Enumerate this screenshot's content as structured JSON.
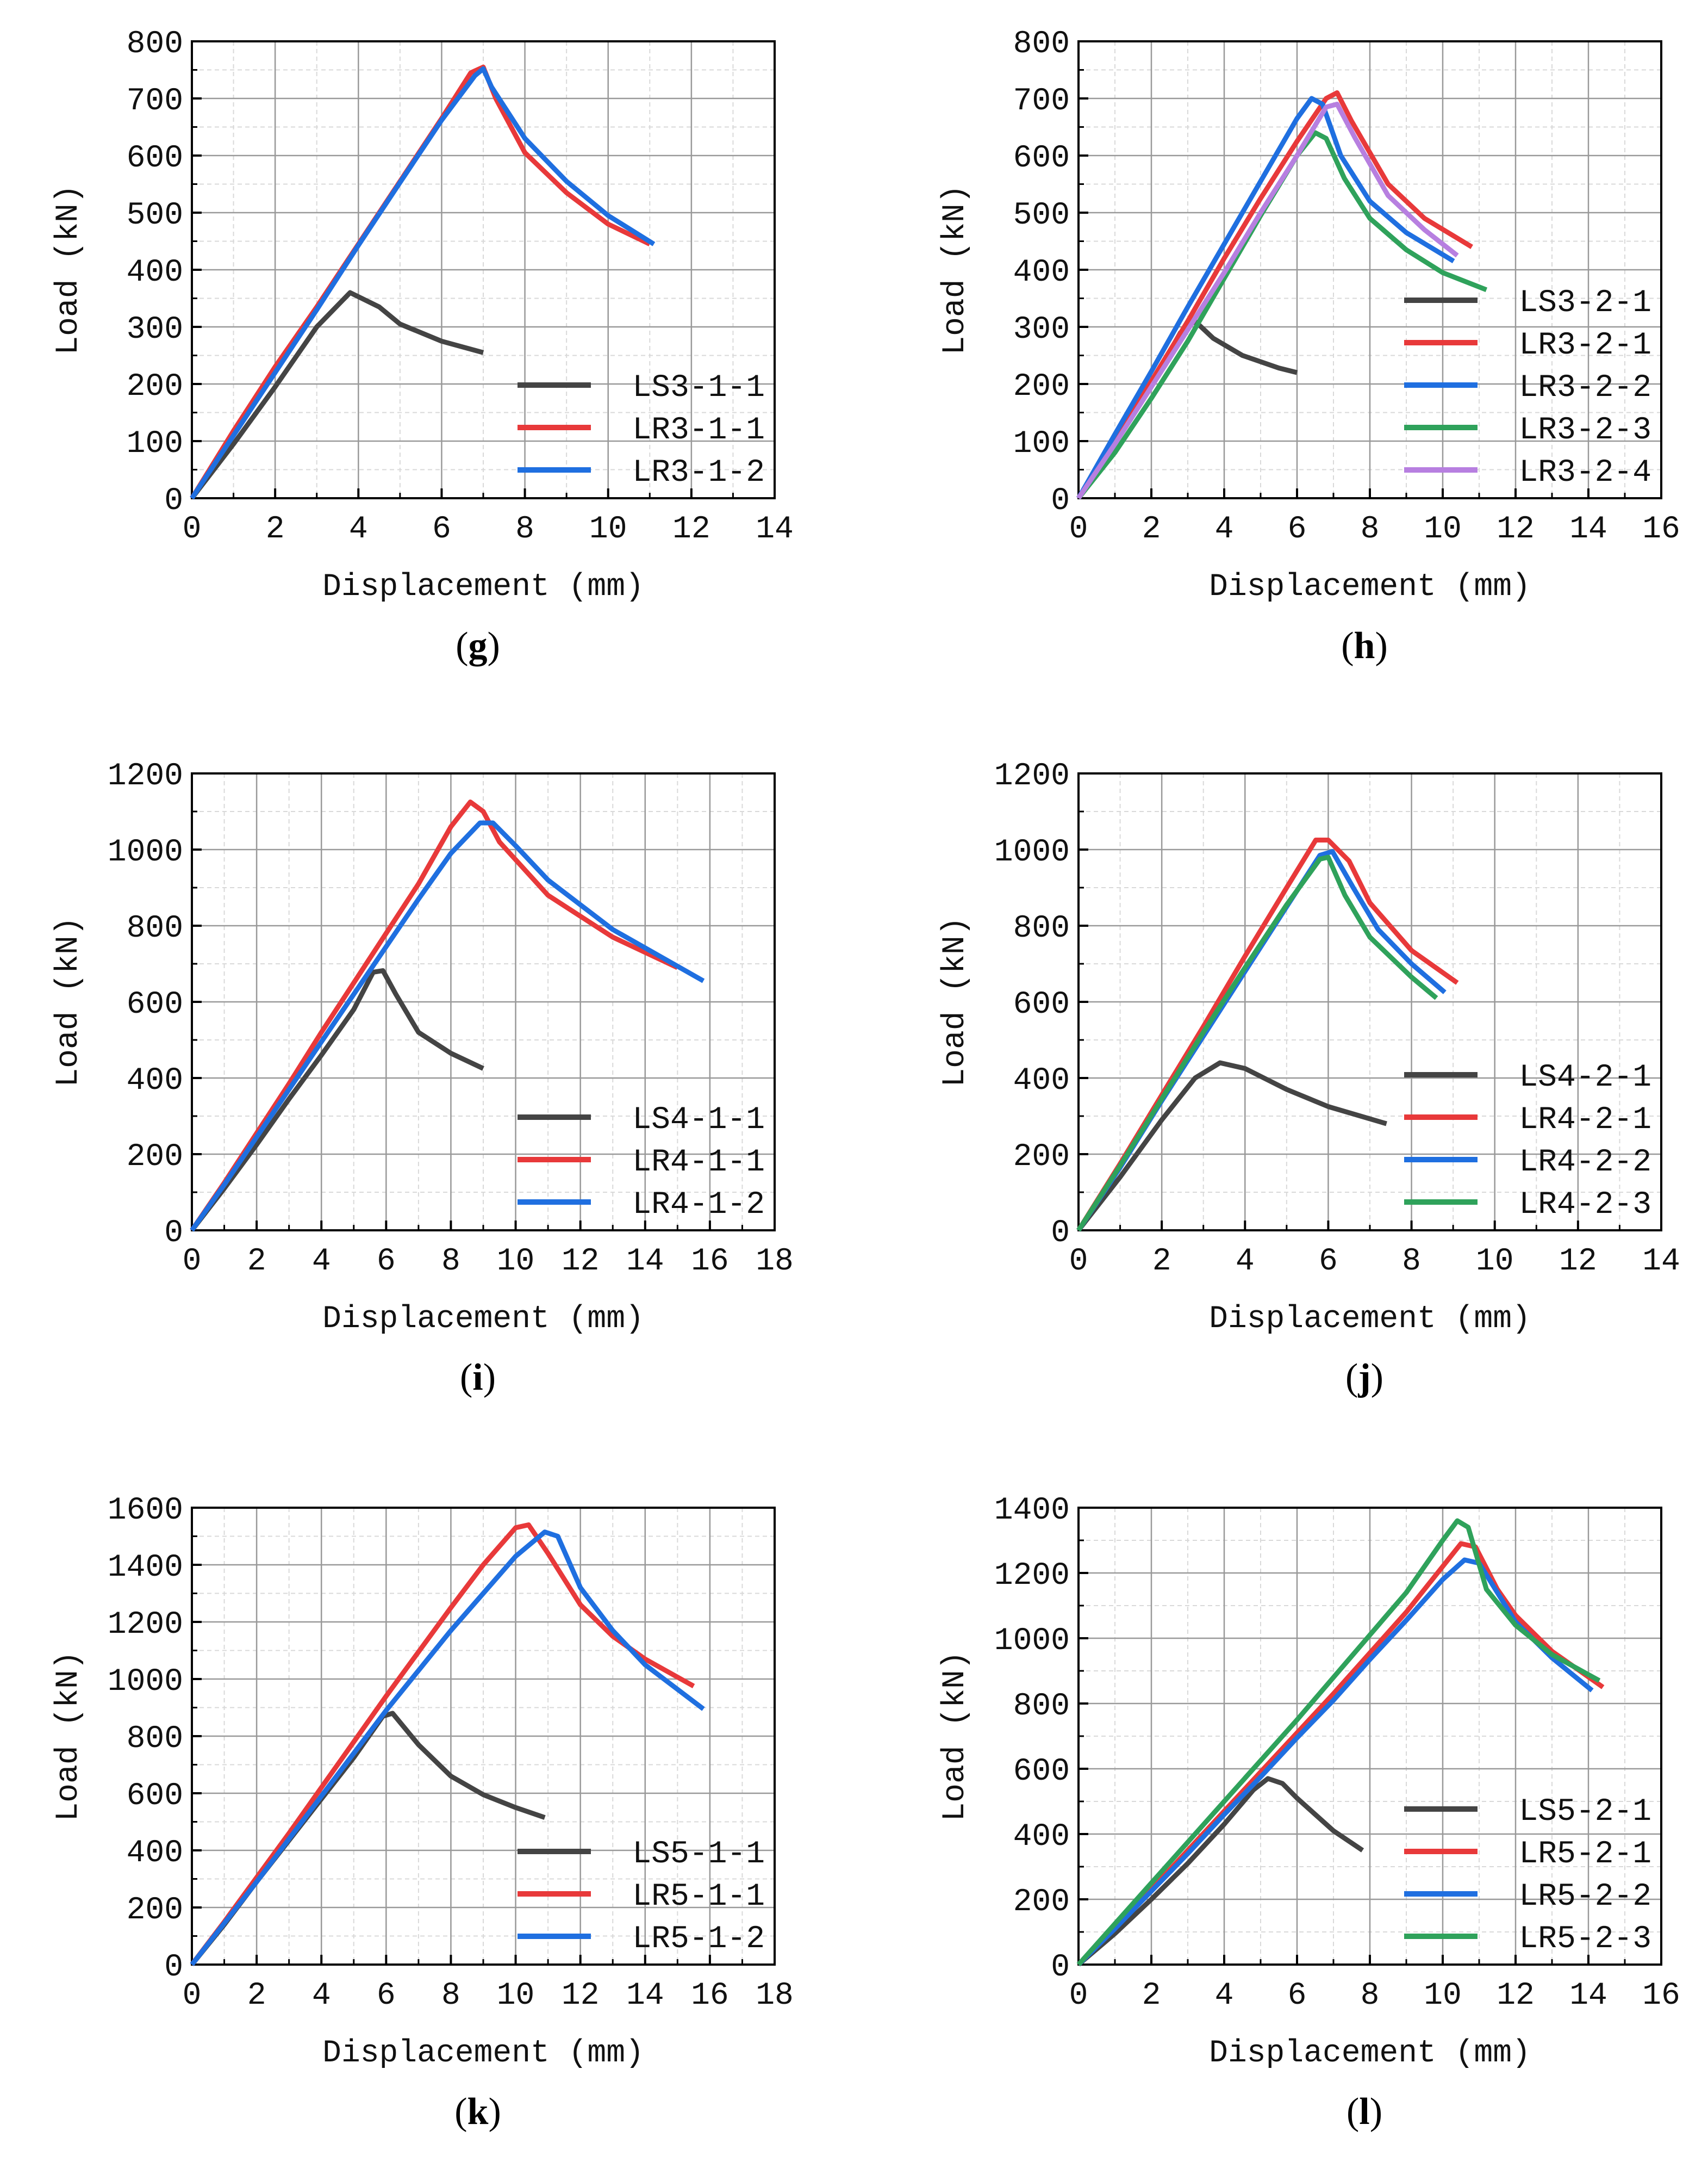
{
  "colors": {
    "LS": "#444444",
    "LR_a": "#e8393a",
    "LR_b": "#1f6fe0",
    "LR_c": "#2fa25b",
    "LR_d": "#b77fe0",
    "major_grid": "#999999",
    "minor_grid": "#d9d9d9"
  },
  "chart_data": [
    {
      "id": "g",
      "type": "line",
      "panel_label": "g",
      "xlabel": "Displacement (mm)",
      "ylabel": "Load (kN)",
      "xlim": [
        0,
        14
      ],
      "ylim": [
        0,
        800
      ],
      "xticks": [
        0,
        2,
        4,
        6,
        8,
        10,
        12,
        14
      ],
      "yticks": [
        0,
        100,
        200,
        300,
        400,
        500,
        600,
        700,
        800
      ],
      "grid": true,
      "legend": "bottom-right",
      "series": [
        {
          "name": "LS3-1-1",
          "color_key": "LS",
          "x": [
            0,
            1,
            2,
            3,
            3.8,
            4.5,
            5,
            6,
            7
          ],
          "y": [
            0,
            95,
            195,
            300,
            360,
            335,
            305,
            275,
            255
          ]
        },
        {
          "name": "LR3-1-1",
          "color_key": "LR_a",
          "x": [
            0,
            1,
            2,
            3,
            4,
            5,
            6,
            6.7,
            7,
            7.3,
            8,
            9,
            10,
            11
          ],
          "y": [
            0,
            118,
            230,
            335,
            445,
            555,
            665,
            745,
            755,
            700,
            605,
            535,
            480,
            445
          ]
        },
        {
          "name": "LR3-1-2",
          "color_key": "LR_b",
          "x": [
            0,
            1,
            2,
            3,
            4,
            5,
            6,
            6.8,
            7,
            7.2,
            8,
            9,
            10,
            11.1
          ],
          "y": [
            0,
            110,
            220,
            330,
            443,
            553,
            662,
            740,
            752,
            720,
            630,
            555,
            495,
            445
          ]
        }
      ]
    },
    {
      "id": "h",
      "type": "line",
      "panel_label": "h",
      "xlabel": "Displacement (mm)",
      "ylabel": "Load (kN)",
      "xlim": [
        0,
        16
      ],
      "ylim": [
        0,
        800
      ],
      "xticks": [
        0,
        2,
        4,
        6,
        8,
        10,
        12,
        14,
        16
      ],
      "yticks": [
        0,
        100,
        200,
        300,
        400,
        500,
        600,
        700,
        800
      ],
      "grid": true,
      "legend": "bottom-right",
      "series": [
        {
          "name": "LS3-2-1",
          "color_key": "LS",
          "x": [
            0,
            1,
            2,
            2.8,
            3.2,
            3.7,
            4.5,
            5.5,
            6
          ],
          "y": [
            0,
            95,
            200,
            290,
            310,
            280,
            250,
            228,
            220
          ]
        },
        {
          "name": "LR3-2-1",
          "color_key": "LR_a",
          "x": [
            0,
            1,
            2,
            3,
            4,
            5,
            6,
            6.8,
            7.1,
            7.5,
            8.5,
            9.5,
            10.8
          ],
          "y": [
            0,
            100,
            205,
            310,
            420,
            525,
            625,
            700,
            710,
            660,
            550,
            490,
            440
          ]
        },
        {
          "name": "LR3-2-2",
          "color_key": "LR_b",
          "x": [
            0,
            1,
            2,
            3,
            4,
            5,
            6,
            6.4,
            6.7,
            7.2,
            8,
            9,
            10.3
          ],
          "y": [
            0,
            112,
            222,
            335,
            445,
            555,
            665,
            700,
            690,
            600,
            520,
            465,
            415
          ]
        },
        {
          "name": "LR3-2-3",
          "color_key": "LR_c",
          "x": [
            0,
            1,
            2,
            3,
            4,
            5,
            6,
            6.5,
            6.8,
            7.3,
            8,
            9,
            10,
            11.2
          ],
          "y": [
            0,
            80,
            175,
            275,
            385,
            495,
            600,
            640,
            630,
            560,
            490,
            435,
            395,
            365
          ]
        },
        {
          "name": "LR3-2-4",
          "color_key": "LR_d",
          "x": [
            0,
            1,
            2,
            3,
            4,
            5,
            6,
            6.8,
            7.1,
            7.6,
            8.5,
            9.5,
            10.4
          ],
          "y": [
            0,
            95,
            195,
            295,
            395,
            500,
            600,
            685,
            690,
            630,
            530,
            470,
            425
          ]
        }
      ]
    },
    {
      "id": "i",
      "type": "line",
      "panel_label": "i",
      "xlabel": "Displacement (mm)",
      "ylabel": "Load (kN)",
      "xlim": [
        0,
        18
      ],
      "ylim": [
        0,
        1200
      ],
      "xticks": [
        0,
        2,
        4,
        6,
        8,
        10,
        12,
        14,
        16,
        18
      ],
      "yticks": [
        0,
        200,
        400,
        600,
        800,
        1000,
        1200
      ],
      "grid": true,
      "legend": "bottom-right",
      "series": [
        {
          "name": "LS4-1-1",
          "color_key": "LS",
          "x": [
            0,
            1,
            2,
            3,
            4,
            5,
            5.6,
            5.9,
            6.3,
            7,
            8,
            9
          ],
          "y": [
            0,
            110,
            225,
            345,
            460,
            580,
            678,
            682,
            620,
            520,
            465,
            425
          ]
        },
        {
          "name": "LR4-1-1",
          "color_key": "LR_a",
          "x": [
            0,
            1,
            2,
            3,
            4,
            5,
            6,
            7,
            8,
            8.6,
            9,
            9.5,
            11,
            13,
            15
          ],
          "y": [
            0,
            125,
            255,
            385,
            520,
            650,
            780,
            910,
            1060,
            1125,
            1100,
            1020,
            880,
            770,
            690
          ]
        },
        {
          "name": "LR4-1-2",
          "color_key": "LR_b",
          "x": [
            0,
            1,
            2,
            3,
            4,
            5,
            6,
            7,
            8,
            8.9,
            9.3,
            10,
            11,
            13,
            15.8
          ],
          "y": [
            0,
            120,
            245,
            370,
            495,
            620,
            745,
            870,
            990,
            1070,
            1070,
            1010,
            920,
            790,
            655
          ]
        }
      ]
    },
    {
      "id": "j",
      "type": "line",
      "panel_label": "j",
      "xlabel": "Displacement (mm)",
      "ylabel": "Load (kN)",
      "xlim": [
        0,
        14
      ],
      "ylim": [
        0,
        1200
      ],
      "xticks": [
        0,
        2,
        4,
        6,
        8,
        10,
        12,
        14
      ],
      "yticks": [
        0,
        200,
        400,
        600,
        800,
        1000,
        1200
      ],
      "grid": true,
      "legend": "bottom-right",
      "series": [
        {
          "name": "LS4-2-1",
          "color_key": "LS",
          "x": [
            0,
            1,
            2,
            2.8,
            3.4,
            4,
            5,
            6,
            7.4
          ],
          "y": [
            0,
            140,
            290,
            400,
            440,
            425,
            370,
            325,
            280
          ]
        },
        {
          "name": "LR4-2-1",
          "color_key": "LR_a",
          "x": [
            0,
            1,
            2,
            3,
            4,
            5,
            5.7,
            6,
            6.5,
            7,
            8,
            9.1
          ],
          "y": [
            0,
            175,
            355,
            535,
            720,
            900,
            1025,
            1025,
            970,
            860,
            735,
            650
          ]
        },
        {
          "name": "LR4-2-2",
          "color_key": "LR_b",
          "x": [
            0,
            1,
            2,
            3,
            4,
            5,
            5.8,
            6.1,
            6.6,
            7.2,
            8,
            8.8
          ],
          "y": [
            0,
            165,
            340,
            510,
            680,
            850,
            985,
            995,
            900,
            790,
            700,
            625
          ]
        },
        {
          "name": "LR4-2-3",
          "color_key": "LR_c",
          "x": [
            0,
            1,
            2,
            3,
            4,
            5,
            5.8,
            6,
            6.4,
            7,
            8,
            8.6
          ],
          "y": [
            0,
            170,
            345,
            520,
            690,
            855,
            975,
            980,
            880,
            770,
            665,
            610
          ]
        }
      ]
    },
    {
      "id": "k",
      "type": "line",
      "panel_label": "k",
      "xlabel": "Displacement (mm)",
      "ylabel": "Load (kN)",
      "xlim": [
        0,
        18
      ],
      "ylim": [
        0,
        1600
      ],
      "xticks": [
        0,
        2,
        4,
        6,
        8,
        10,
        12,
        14,
        16,
        18
      ],
      "yticks": [
        0,
        200,
        400,
        600,
        800,
        1000,
        1200,
        1400,
        1600
      ],
      "grid": true,
      "legend": "bottom-right",
      "series": [
        {
          "name": "LS5-1-1",
          "color_key": "LS",
          "x": [
            0,
            1,
            2,
            3,
            4,
            5,
            5.9,
            6.2,
            7,
            8,
            9,
            10,
            10.9
          ],
          "y": [
            0,
            140,
            290,
            435,
            580,
            725,
            870,
            880,
            770,
            660,
            595,
            550,
            515
          ]
        },
        {
          "name": "LR5-1-1",
          "color_key": "LR_a",
          "x": [
            0,
            1,
            2,
            3,
            4,
            5,
            6,
            7,
            8,
            9,
            10,
            10.4,
            11,
            12,
            13,
            14,
            15.5
          ],
          "y": [
            0,
            150,
            305,
            460,
            620,
            780,
            940,
            1095,
            1250,
            1400,
            1530,
            1540,
            1440,
            1260,
            1150,
            1070,
            975
          ]
        },
        {
          "name": "LR5-1-2",
          "color_key": "LR_b",
          "x": [
            0,
            1,
            2,
            3,
            4,
            5,
            6,
            7,
            8,
            9,
            10,
            10.9,
            11.3,
            12,
            13,
            14,
            15.8
          ],
          "y": [
            0,
            145,
            290,
            440,
            590,
            740,
            890,
            1030,
            1170,
            1300,
            1430,
            1515,
            1500,
            1320,
            1170,
            1050,
            895
          ]
        }
      ]
    },
    {
      "id": "l",
      "type": "line",
      "panel_label": "l",
      "xlabel": "Displacement (mm)",
      "ylabel": "Load (kN)",
      "xlim": [
        0,
        16
      ],
      "ylim": [
        0,
        1400
      ],
      "xticks": [
        0,
        2,
        4,
        6,
        8,
        10,
        12,
        14,
        16
      ],
      "yticks": [
        0,
        200,
        400,
        600,
        800,
        1000,
        1200,
        1400
      ],
      "grid": true,
      "legend": "bottom-right",
      "series": [
        {
          "name": "LS5-2-1",
          "color_key": "LS",
          "x": [
            0,
            1,
            2,
            3,
            4,
            4.8,
            5.2,
            5.6,
            6,
            6.5,
            7,
            7.8
          ],
          "y": [
            0,
            95,
            200,
            310,
            430,
            535,
            570,
            555,
            510,
            460,
            410,
            350
          ]
        },
        {
          "name": "LR5-2-1",
          "color_key": "LR_a",
          "x": [
            0,
            1,
            2,
            3,
            4,
            5,
            6,
            7,
            8,
            9,
            10,
            10.5,
            10.9,
            11.5,
            12,
            13,
            14.4
          ],
          "y": [
            0,
            115,
            230,
            350,
            470,
            590,
            710,
            830,
            955,
            1080,
            1220,
            1290,
            1280,
            1150,
            1070,
            960,
            850
          ]
        },
        {
          "name": "LR5-2-2",
          "color_key": "LR_b",
          "x": [
            0,
            1,
            2,
            3,
            4,
            5,
            6,
            7,
            8,
            9,
            10,
            10.6,
            11,
            11.5,
            12,
            13,
            14.1
          ],
          "y": [
            0,
            110,
            225,
            340,
            460,
            575,
            695,
            810,
            935,
            1055,
            1180,
            1240,
            1230,
            1140,
            1050,
            940,
            840
          ]
        },
        {
          "name": "LR5-2-3",
          "color_key": "LR_c",
          "x": [
            0,
            1,
            2,
            3,
            4,
            5,
            6,
            7,
            8,
            9,
            10,
            10.4,
            10.7,
            11.2,
            12,
            13,
            14.3
          ],
          "y": [
            0,
            125,
            250,
            375,
            500,
            625,
            750,
            880,
            1010,
            1140,
            1300,
            1360,
            1340,
            1150,
            1040,
            950,
            870
          ]
        }
      ]
    }
  ]
}
